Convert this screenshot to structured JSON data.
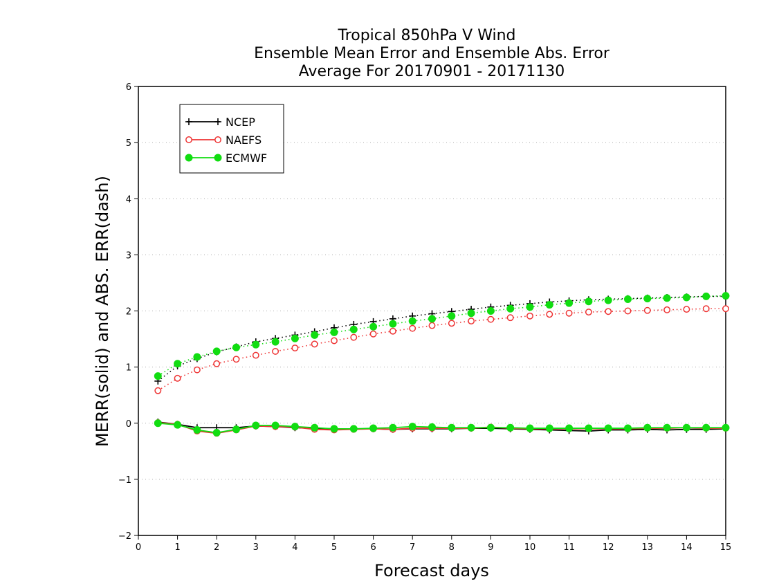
{
  "chart_data": {
    "type": "line",
    "title": [
      "Tropical 850hPa V Wind",
      "Ensemble Mean Error and Ensemble Abs. Error",
      "Average For 20170901 - 20171130"
    ],
    "xlabel": "Forecast days",
    "ylabel": "MERR(solid) and ABS. ERR(dash)",
    "xlim": [
      0,
      15
    ],
    "ylim": [
      -2,
      6
    ],
    "x_ticks": [
      "0",
      "1",
      "2",
      "3",
      "4",
      "5",
      "6",
      "7",
      "8",
      "9",
      "10",
      "11",
      "12",
      "13",
      "14",
      "15"
    ],
    "y_ticks": [
      "-2",
      "-1",
      "0",
      "1",
      "2",
      "3",
      "4",
      "5",
      "6"
    ],
    "grid": "horizontal dotted",
    "legend_position": "top-left",
    "x": [
      0.5,
      1,
      1.5,
      2,
      2.5,
      3,
      3.5,
      4,
      4.5,
      5,
      5.5,
      6,
      6.5,
      7,
      7.5,
      8,
      8.5,
      9,
      9.5,
      10,
      10.5,
      11,
      11.5,
      12,
      12.5,
      13,
      13.5,
      14,
      14.5,
      15
    ],
    "series": [
      {
        "name": "NCEP",
        "color": "#000000",
        "marker": "plus",
        "merr": [
          0.02,
          -0.02,
          -0.08,
          -0.08,
          -0.08,
          -0.05,
          -0.06,
          -0.08,
          -0.09,
          -0.1,
          -0.1,
          -0.1,
          -0.11,
          -0.1,
          -0.1,
          -0.1,
          -0.09,
          -0.09,
          -0.1,
          -0.11,
          -0.12,
          -0.13,
          -0.14,
          -0.12,
          -0.12,
          -0.11,
          -0.12,
          -0.11,
          -0.11,
          -0.1
        ],
        "abs_err": [
          0.75,
          1.02,
          1.15,
          1.27,
          1.36,
          1.45,
          1.51,
          1.57,
          1.63,
          1.7,
          1.76,
          1.81,
          1.86,
          1.91,
          1.95,
          1.99,
          2.03,
          2.07,
          2.1,
          2.13,
          2.16,
          2.18,
          2.2,
          2.21,
          2.22,
          2.23,
          2.24,
          2.25,
          2.26,
          2.26
        ]
      },
      {
        "name": "NAEFS",
        "color": "#ee3333",
        "marker": "open-circle",
        "merr": [
          0.01,
          -0.02,
          -0.14,
          -0.18,
          -0.12,
          -0.05,
          -0.06,
          -0.07,
          -0.11,
          -0.12,
          -0.11,
          -0.1,
          -0.11,
          -0.09,
          -0.09,
          -0.09,
          -0.09,
          -0.07,
          -0.09,
          -0.1,
          -0.1,
          -0.1,
          -0.1,
          -0.1,
          -0.1,
          -0.09,
          -0.09,
          -0.08,
          -0.09,
          -0.09
        ],
        "abs_err": [
          0.58,
          0.8,
          0.95,
          1.06,
          1.14,
          1.21,
          1.28,
          1.34,
          1.41,
          1.47,
          1.53,
          1.59,
          1.64,
          1.69,
          1.74,
          1.78,
          1.82,
          1.85,
          1.88,
          1.91,
          1.94,
          1.96,
          1.98,
          1.99,
          2.0,
          2.01,
          2.02,
          2.03,
          2.04,
          2.04
        ]
      },
      {
        "name": "ECMWF",
        "color": "#11dd11",
        "marker": "filled-circle",
        "merr": [
          0.0,
          -0.03,
          -0.12,
          -0.17,
          -0.11,
          -0.04,
          -0.04,
          -0.06,
          -0.08,
          -0.1,
          -0.1,
          -0.09,
          -0.08,
          -0.06,
          -0.07,
          -0.08,
          -0.08,
          -0.08,
          -0.08,
          -0.09,
          -0.09,
          -0.09,
          -0.09,
          -0.09,
          -0.09,
          -0.08,
          -0.08,
          -0.08,
          -0.08,
          -0.08
        ],
        "abs_err": [
          0.84,
          1.06,
          1.18,
          1.28,
          1.35,
          1.4,
          1.45,
          1.51,
          1.57,
          1.62,
          1.67,
          1.72,
          1.77,
          1.82,
          1.86,
          1.91,
          1.96,
          2.0,
          2.04,
          2.07,
          2.11,
          2.14,
          2.17,
          2.19,
          2.21,
          2.22,
          2.23,
          2.24,
          2.26,
          2.27
        ]
      }
    ]
  }
}
